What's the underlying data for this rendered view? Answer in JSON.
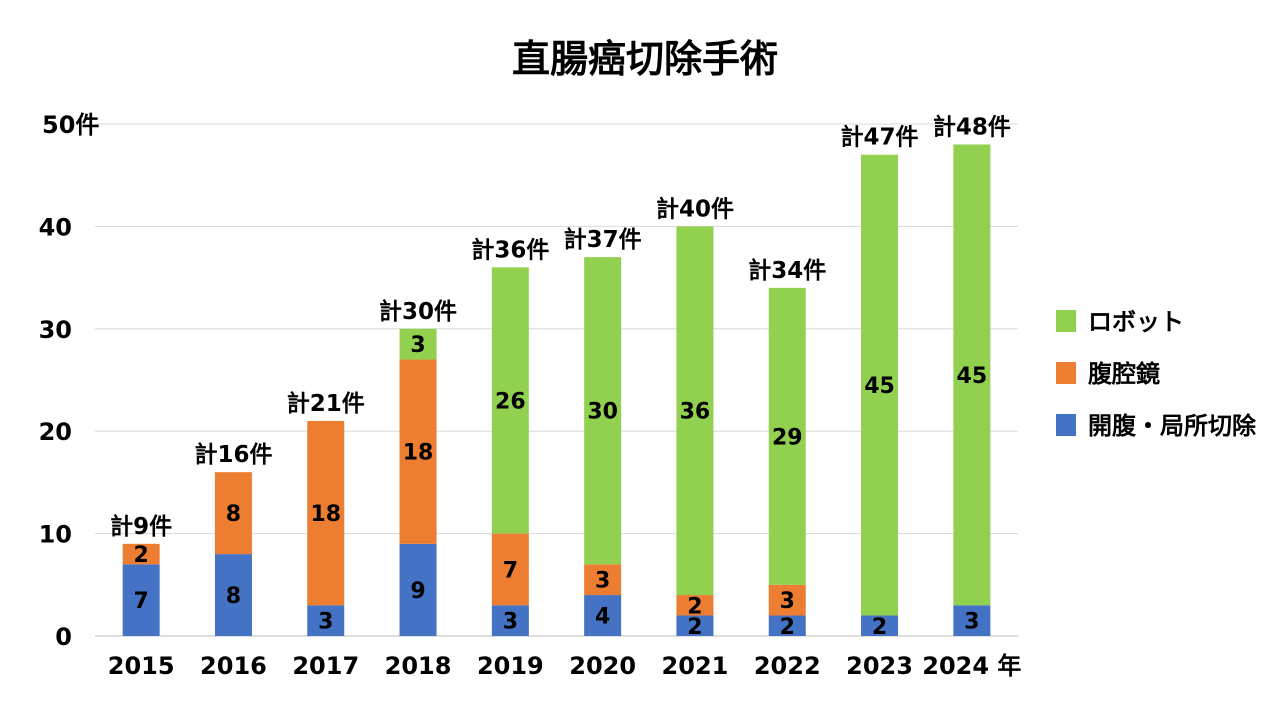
{
  "chart_data": {
    "type": "bar",
    "stacked": true,
    "title": "直腸癌切除手術",
    "categories": [
      "2015",
      "2016",
      "2017",
      "2018",
      "2019",
      "2020",
      "2021",
      "2022",
      "2023",
      "2024"
    ],
    "x_unit": "年",
    "y_unit": "件",
    "ylim": [
      0,
      50
    ],
    "yticks": [
      0,
      10,
      20,
      30,
      40,
      50
    ],
    "grid": true,
    "legend_position": "right",
    "series": [
      {
        "name": "開腹・局所切除",
        "color": "#4472c4",
        "values": [
          7,
          8,
          3,
          9,
          3,
          4,
          2,
          2,
          2,
          3
        ]
      },
      {
        "name": "腹腔鏡",
        "color": "#ed7d31",
        "values": [
          2,
          8,
          18,
          18,
          7,
          3,
          2,
          3,
          0,
          0
        ]
      },
      {
        "name": "ロボット",
        "color": "#92d050",
        "values": [
          0,
          0,
          0,
          3,
          26,
          30,
          36,
          29,
          45,
          45
        ]
      }
    ],
    "totals": [
      "計9件",
      "計16件",
      "計21件",
      "計30件",
      "計36件",
      "計37件",
      "計40件",
      "計34件",
      "計47件",
      "計48件"
    ]
  }
}
